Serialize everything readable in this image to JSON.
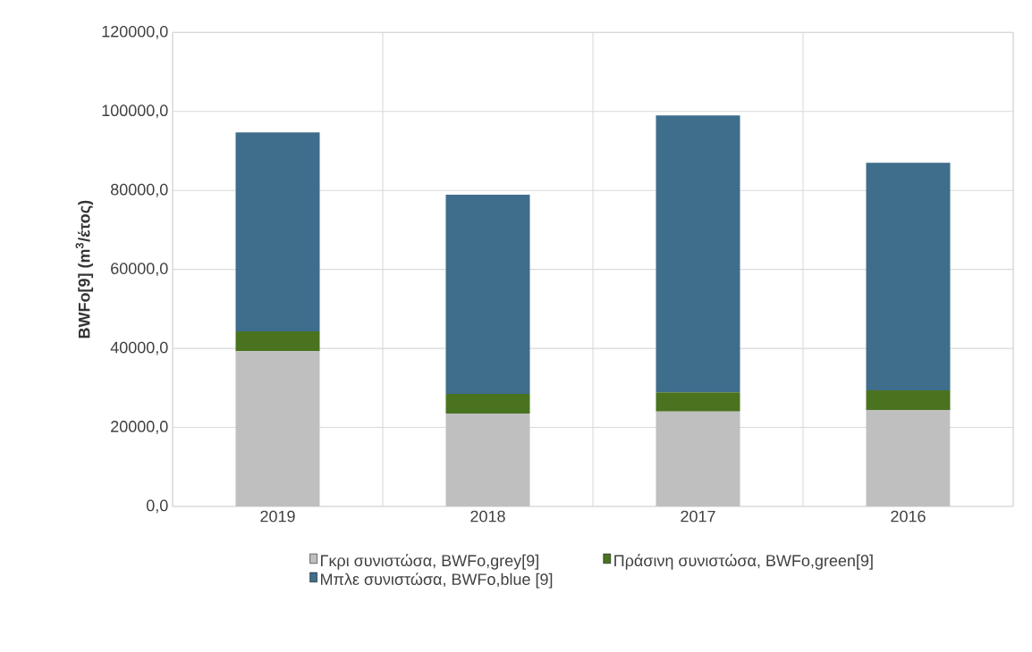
{
  "chart_data": {
    "type": "bar",
    "stacked": true,
    "ylabel": "BWFo[9] (m$^{3}$/έτος)",
    "categories": [
      "2019",
      "2018",
      "2017",
      "2016"
    ],
    "series": [
      {
        "name": "Γκρι συνιστώσα, BWFo,grey[9]",
        "color": "#bfbfbf",
        "values": [
          39300,
          23500,
          24000,
          24400
        ]
      },
      {
        "name": "Πράσινη συνιστώσα, BWFo,green[9]",
        "color": "#4a7320",
        "values": [
          5000,
          5000,
          4900,
          5000
        ]
      },
      {
        "name": "Μπλε συνιστώσα, BWFo,blue [9]",
        "color": "#3f6d8c",
        "values": [
          50400,
          50400,
          70100,
          57600
        ]
      }
    ],
    "ylim": [
      0,
      120000
    ],
    "yticks": [
      {
        "value": 0,
        "label": "0,0"
      },
      {
        "value": 20000,
        "label": "20000,0"
      },
      {
        "value": 40000,
        "label": "40000,0"
      },
      {
        "value": 60000,
        "label": "60000,0"
      },
      {
        "value": 80000,
        "label": "80000,0"
      },
      {
        "value": 100000,
        "label": "100000,0"
      },
      {
        "value": 120000,
        "label": "120000,0"
      }
    ],
    "grid": true,
    "legend": "bottom"
  }
}
